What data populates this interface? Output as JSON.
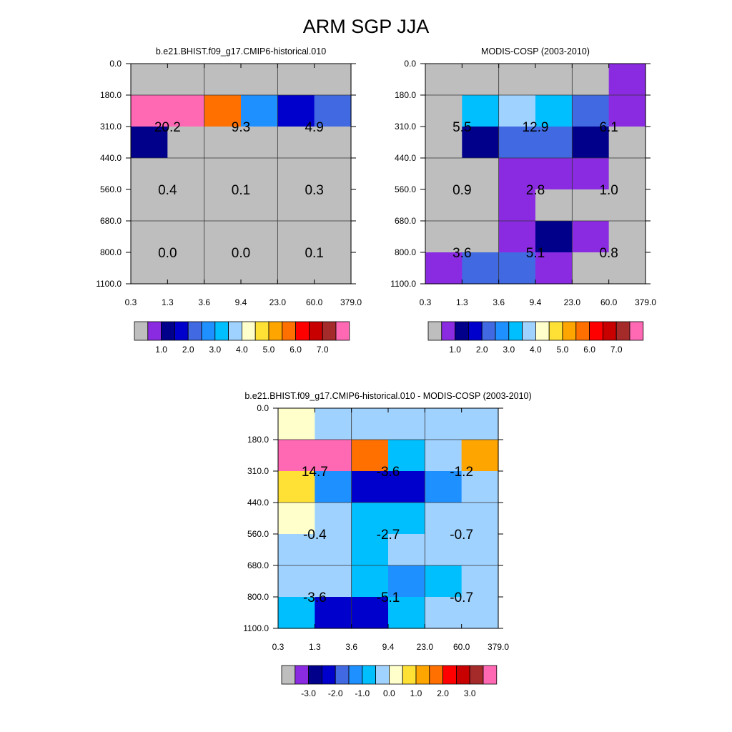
{
  "title": "ARM SGP JJA",
  "chart_data": [
    {
      "type": "heatmap",
      "title": "b.e21.BHIST.f09_g17.CMIP6-historical.010",
      "x_ticks": [
        "0.3",
        "1.3",
        "3.6",
        "9.4",
        "23.0",
        "60.0",
        "379.0"
      ],
      "y_ticks": [
        "0.0",
        "180.0",
        "310.0",
        "440.0",
        "560.0",
        "680.0",
        "800.0",
        "1100.0"
      ],
      "y_reversed": true,
      "colorbar_colors": [
        "#bebebe",
        "#8a2be2",
        "#00008b",
        "#0000cd",
        "#4169e1",
        "#1e90ff",
        "#00bfff",
        "#a0d2ff",
        "#ffffcc",
        "#ffe135",
        "#ffa500",
        "#ff7000",
        "#ff0000",
        "#c80000",
        "#a52a2a",
        "#ff69b4"
      ],
      "colorbar_labels": [
        "1.0",
        "2.0",
        "3.0",
        "4.0",
        "5.0",
        "6.0",
        "7.0"
      ],
      "cell_colors": [
        [
          "#bebebe",
          "#bebebe",
          "#bebebe",
          "#bebebe",
          "#bebebe",
          "#bebebe"
        ],
        [
          "#ff69b4",
          "#ff69b4",
          "#ff7000",
          "#1e90ff",
          "#0000cd",
          "#4169e1"
        ],
        [
          "#00008b",
          "#bebebe",
          "#bebebe",
          "#bebebe",
          "#bebebe",
          "#bebebe"
        ],
        [
          "#bebebe",
          "#bebebe",
          "#bebebe",
          "#bebebe",
          "#bebebe",
          "#bebebe"
        ],
        [
          "#bebebe",
          "#bebebe",
          "#bebebe",
          "#bebebe",
          "#bebebe",
          "#bebebe"
        ],
        [
          "#bebebe",
          "#bebebe",
          "#bebebe",
          "#bebebe",
          "#bebebe",
          "#bebebe"
        ],
        [
          "#bebebe",
          "#bebebe",
          "#bebebe",
          "#bebebe",
          "#bebebe",
          "#bebebe"
        ]
      ],
      "cell_labels": [
        {
          "col": 0,
          "row": 1,
          "text": "20.2"
        },
        {
          "col": 1,
          "row": 1,
          "text": "9.3"
        },
        {
          "col": 2,
          "row": 1,
          "text": "4.9"
        },
        {
          "col": 0,
          "row": 2,
          "text": "0.4"
        },
        {
          "col": 1,
          "row": 2,
          "text": "0.1"
        },
        {
          "col": 2,
          "row": 2,
          "text": "0.3"
        },
        {
          "col": 0,
          "row": 3,
          "text": "0.0"
        },
        {
          "col": 1,
          "row": 3,
          "text": "0.0"
        },
        {
          "col": 2,
          "row": 3,
          "text": "0.1"
        }
      ]
    },
    {
      "type": "heatmap",
      "title": "MODIS-COSP (2003-2010)",
      "x_ticks": [
        "0.3",
        "1.3",
        "3.6",
        "9.4",
        "23.0",
        "60.0",
        "379.0"
      ],
      "y_ticks": [
        "0.0",
        "180.0",
        "310.0",
        "440.0",
        "560.0",
        "680.0",
        "800.0",
        "1100.0"
      ],
      "y_reversed": true,
      "colorbar_colors": [
        "#bebebe",
        "#8a2be2",
        "#00008b",
        "#0000cd",
        "#4169e1",
        "#1e90ff",
        "#00bfff",
        "#a0d2ff",
        "#ffffcc",
        "#ffe135",
        "#ffa500",
        "#ff7000",
        "#ff0000",
        "#c80000",
        "#a52a2a",
        "#ff69b4"
      ],
      "colorbar_labels": [
        "1.0",
        "2.0",
        "3.0",
        "4.0",
        "5.0",
        "6.0",
        "7.0"
      ],
      "cell_colors": [
        [
          "#bebebe",
          "#bebebe",
          "#bebebe",
          "#bebebe",
          "#bebebe",
          "#8a2be2"
        ],
        [
          "#bebebe",
          "#00bfff",
          "#a0d2ff",
          "#00bfff",
          "#4169e1",
          "#8a2be2"
        ],
        [
          "#bebebe",
          "#00008b",
          "#4169e1",
          "#4169e1",
          "#00008b",
          "#bebebe"
        ],
        [
          "#bebebe",
          "#bebebe",
          "#8a2be2",
          "#8a2be2",
          "#8a2be2",
          "#bebebe"
        ],
        [
          "#bebebe",
          "#bebebe",
          "#8a2be2",
          "#bebebe",
          "#bebebe",
          "#bebebe"
        ],
        [
          "#bebebe",
          "#bebebe",
          "#8a2be2",
          "#00008b",
          "#8a2be2",
          "#bebebe"
        ],
        [
          "#8a2be2",
          "#4169e1",
          "#4169e1",
          "#8a2be2",
          "#bebebe",
          "#bebebe"
        ]
      ],
      "cell_labels": [
        {
          "col": 0,
          "row": 1,
          "text": "5.5"
        },
        {
          "col": 1,
          "row": 1,
          "text": "12.9"
        },
        {
          "col": 2,
          "row": 1,
          "text": "6.1"
        },
        {
          "col": 0,
          "row": 2,
          "text": "0.9"
        },
        {
          "col": 1,
          "row": 2,
          "text": "2.8"
        },
        {
          "col": 2,
          "row": 2,
          "text": "1.0"
        },
        {
          "col": 0,
          "row": 3,
          "text": "3.6"
        },
        {
          "col": 1,
          "row": 3,
          "text": "5.1"
        },
        {
          "col": 2,
          "row": 3,
          "text": "0.8"
        }
      ]
    },
    {
      "type": "heatmap",
      "title": "b.e21.BHIST.f09_g17.CMIP6-historical.010 - MODIS-COSP (2003-2010)",
      "x_ticks": [
        "0.3",
        "1.3",
        "3.6",
        "9.4",
        "23.0",
        "60.0",
        "379.0"
      ],
      "y_ticks": [
        "0.0",
        "180.0",
        "310.0",
        "440.0",
        "560.0",
        "680.0",
        "800.0",
        "1100.0"
      ],
      "y_reversed": true,
      "colorbar_colors": [
        "#bebebe",
        "#8a2be2",
        "#00008b",
        "#0000cd",
        "#4169e1",
        "#1e90ff",
        "#00bfff",
        "#a0d2ff",
        "#ffffcc",
        "#ffe135",
        "#ffa500",
        "#ff7000",
        "#ff0000",
        "#c80000",
        "#a52a2a",
        "#ff69b4"
      ],
      "colorbar_labels": [
        "-3.0",
        "-2.0",
        "-1.0",
        "0.0",
        "1.0",
        "2.0",
        "3.0"
      ],
      "cell_colors": [
        [
          "#ffffcc",
          "#a0d2ff",
          "#a0d2ff",
          "#a0d2ff",
          "#a0d2ff",
          "#a0d2ff"
        ],
        [
          "#ff69b4",
          "#ff69b4",
          "#ff7000",
          "#00bfff",
          "#a0d2ff",
          "#ffa500"
        ],
        [
          "#ffe135",
          "#1e90ff",
          "#0000cd",
          "#0000cd",
          "#1e90ff",
          "#a0d2ff"
        ],
        [
          "#ffffcc",
          "#a0d2ff",
          "#00bfff",
          "#00bfff",
          "#a0d2ff",
          "#a0d2ff"
        ],
        [
          "#a0d2ff",
          "#a0d2ff",
          "#00bfff",
          "#a0d2ff",
          "#a0d2ff",
          "#a0d2ff"
        ],
        [
          "#a0d2ff",
          "#a0d2ff",
          "#00bfff",
          "#1e90ff",
          "#00bfff",
          "#a0d2ff"
        ],
        [
          "#00bfff",
          "#0000cd",
          "#0000cd",
          "#00bfff",
          "#a0d2ff",
          "#a0d2ff"
        ]
      ],
      "cell_labels": [
        {
          "col": 0,
          "row": 1,
          "text": "14.7"
        },
        {
          "col": 1,
          "row": 1,
          "text": "-3.6"
        },
        {
          "col": 2,
          "row": 1,
          "text": "-1.2"
        },
        {
          "col": 0,
          "row": 2,
          "text": "-0.4"
        },
        {
          "col": 1,
          "row": 2,
          "text": "-2.7"
        },
        {
          "col": 2,
          "row": 2,
          "text": "-0.7"
        },
        {
          "col": 0,
          "row": 3,
          "text": "-3.6"
        },
        {
          "col": 1,
          "row": 3,
          "text": "-5.1"
        },
        {
          "col": 2,
          "row": 3,
          "text": "-0.7"
        }
      ]
    }
  ]
}
